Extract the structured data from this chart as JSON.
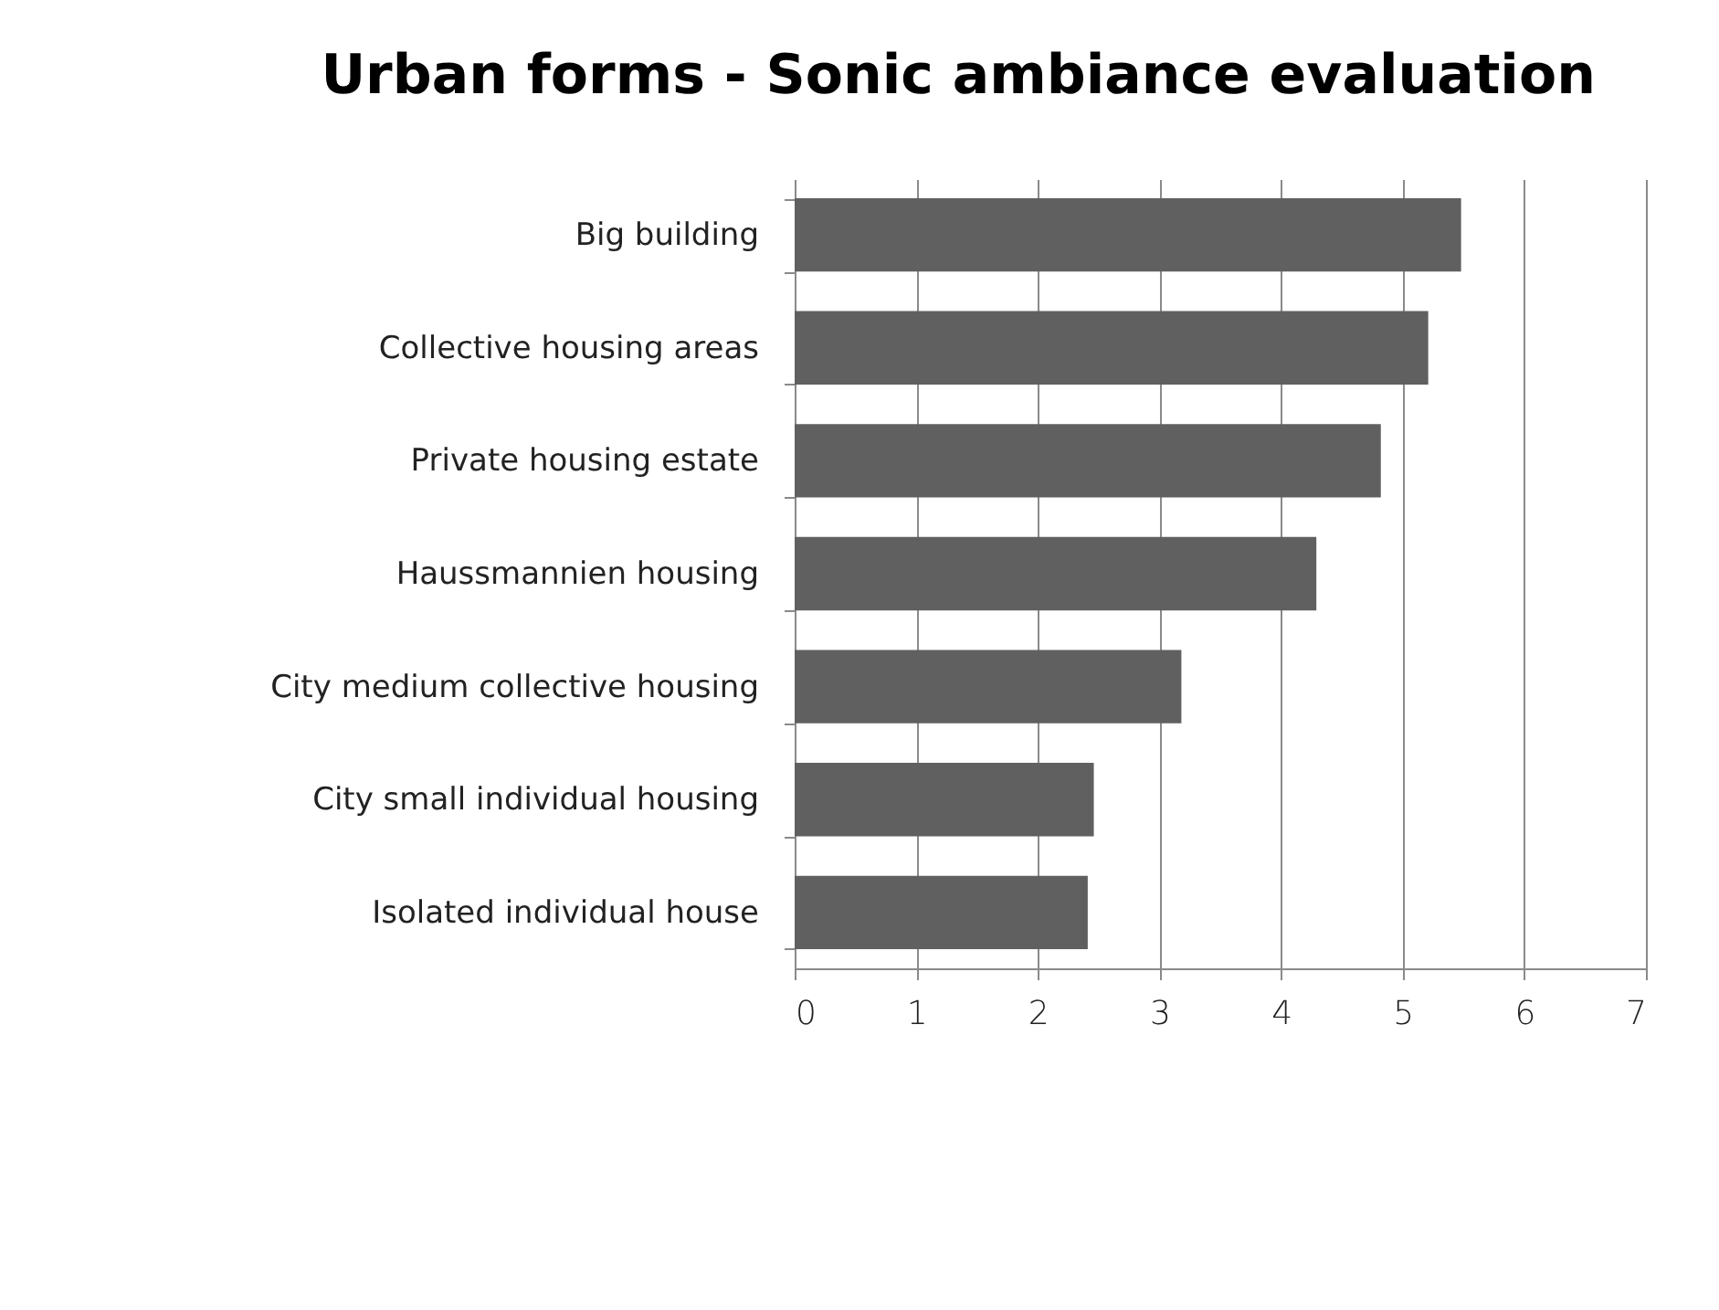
{
  "chart_data": {
    "type": "bar",
    "orientation": "horizontal",
    "title": "Urban forms - Sonic ambiance evaluation",
    "categories": [
      "Big building",
      "Collective housing areas",
      "Private housing estate",
      "Haussmannien housing",
      "City medium collective housing",
      "City small individual housing",
      "Isolated individual house"
    ],
    "values": [
      5.48,
      5.21,
      4.82,
      4.29,
      3.18,
      2.46,
      2.41
    ],
    "color": "#606060",
    "xlim": [
      0,
      7
    ],
    "xticks": [
      0,
      1,
      2,
      3,
      4,
      5,
      6,
      7
    ],
    "grid": "x"
  }
}
